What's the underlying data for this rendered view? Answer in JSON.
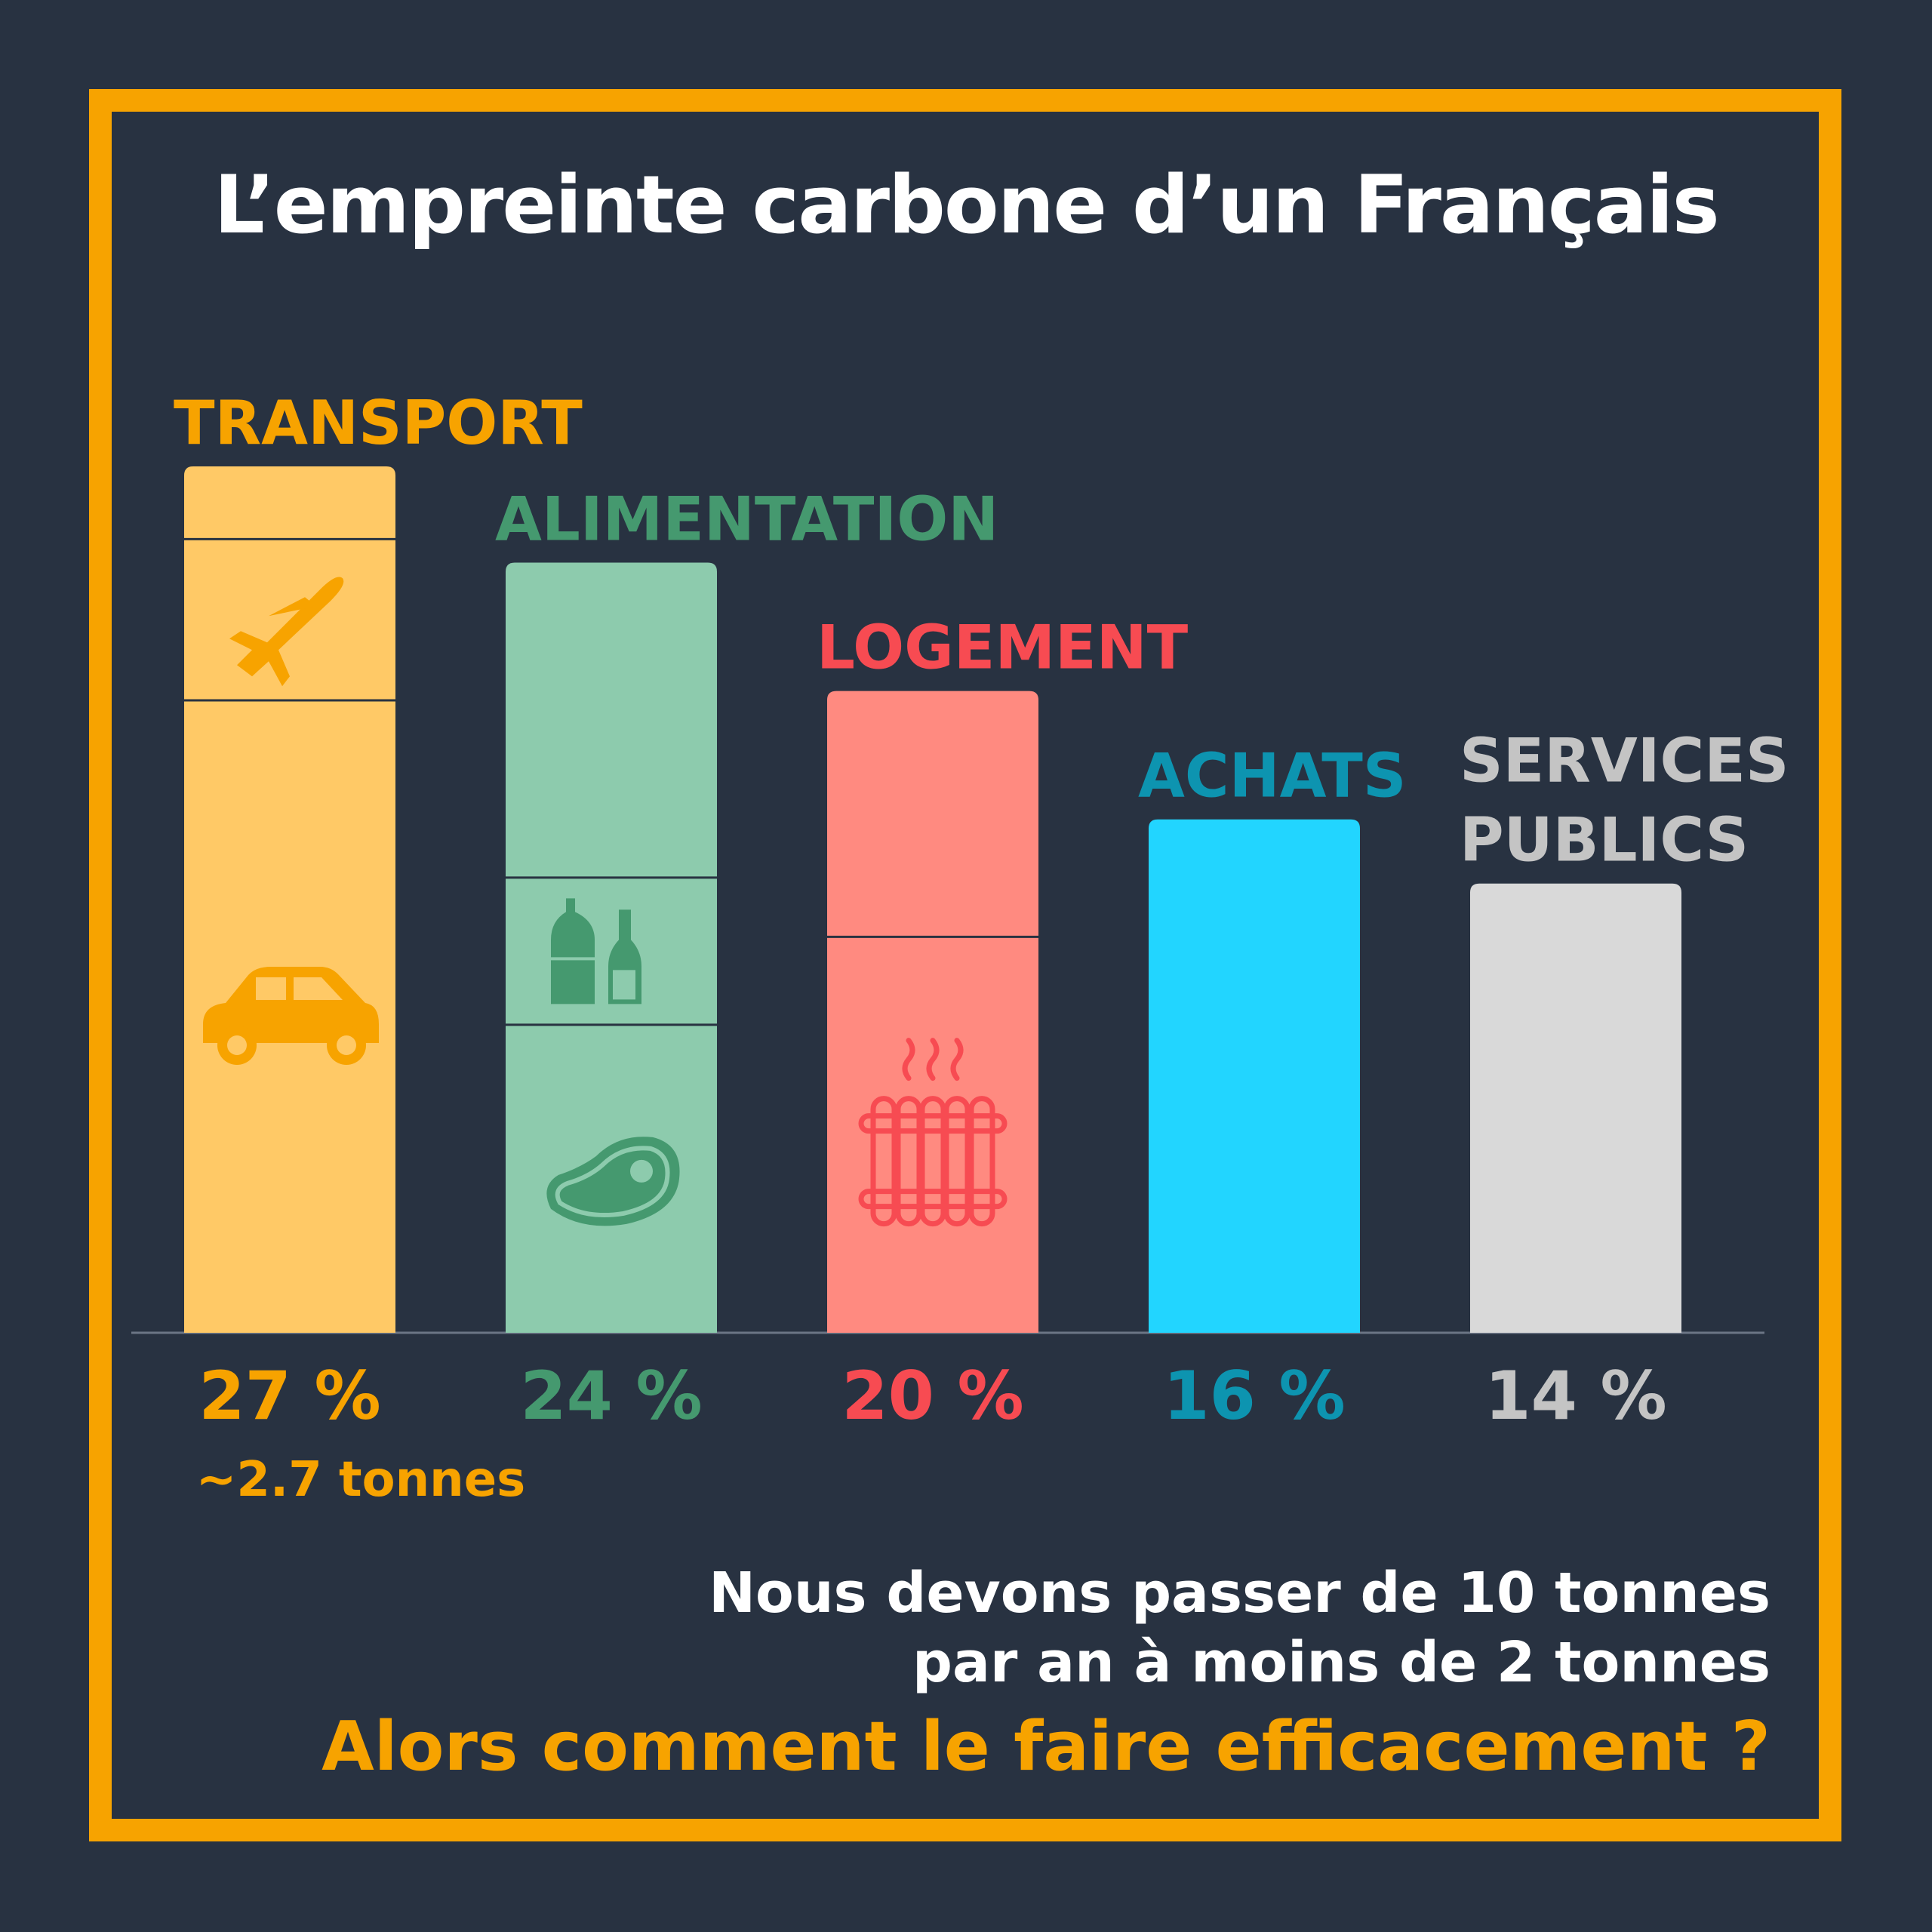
{
  "title": "L’empreinte carbone d’un Français",
  "chart_data": {
    "type": "bar",
    "title": "L’empreinte carbone d’un Français",
    "ylim": [
      0,
      30
    ],
    "grid": false,
    "categories": [
      {
        "label_lines": [
          "TRANSPORT"
        ],
        "value": 27,
        "value_label": "27 %",
        "note": "~2.7 tonnes",
        "label_color": "#F7A300",
        "bar_color": "#FFC966",
        "icon_color": "#F7A300",
        "segments": [
          {
            "share": 8.4,
            "icon": ""
          },
          {
            "share": 18.6,
            "icon": "plane-icon"
          },
          {
            "share": 73.0,
            "icon": "car-icon"
          }
        ]
      },
      {
        "label_lines": [
          "ALIMENTATION"
        ],
        "value": 24,
        "value_label": "24 %",
        "label_color": "#45996F",
        "bar_color": "#8DCBAD",
        "icon_color": "#45996F",
        "segments": [
          {
            "share": 40.9,
            "icon": ""
          },
          {
            "share": 19.1,
            "icon": "bottles-icon"
          },
          {
            "share": 40.0,
            "icon": "meat-icon"
          }
        ]
      },
      {
        "label_lines": [
          "LOGEMENT"
        ],
        "value": 20,
        "value_label": "20 %",
        "label_color": "#F74B52",
        "bar_color": "#FF8A80",
        "icon_color": "#F74B52",
        "segments": [
          {
            "share": 38.3,
            "icon": ""
          },
          {
            "share": 61.7,
            "icon": "radiator-icon"
          }
        ]
      },
      {
        "label_lines": [
          "ACHATS"
        ],
        "value": 16,
        "value_label": "16 %",
        "label_color": "#0D94B0",
        "bar_color": "#22D5FF",
        "icon_color": "#0D94B0",
        "segments": [
          {
            "share": 100,
            "icon": ""
          }
        ]
      },
      {
        "label_lines": [
          "SERVICES",
          "PUBLICS"
        ],
        "value": 14,
        "value_label": "14 %",
        "label_color": "#C4C4C4",
        "bar_color": "#D9D9D9",
        "icon_color": "#C4C4C4",
        "segments": [
          {
            "share": 100,
            "icon": ""
          }
        ]
      }
    ]
  },
  "message": {
    "line1": "Nous devons passer de 10 tonnes",
    "line2": "par an à moins de 2 tonnes",
    "question": "Alors comment le faire efficacement ?"
  }
}
